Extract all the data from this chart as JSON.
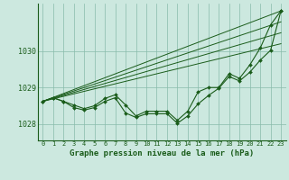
{
  "title": "Graphe pression niveau de la mer (hPa)",
  "bg_color": "#cce8df",
  "plot_bg_color": "#cce8df",
  "grid_color": "#88bbaa",
  "line_color": "#1a5c1a",
  "marker_color": "#1a5c1a",
  "x_ticks": [
    0,
    1,
    2,
    3,
    4,
    5,
    6,
    7,
    8,
    9,
    10,
    11,
    12,
    13,
    14,
    15,
    16,
    17,
    18,
    19,
    20,
    21,
    22,
    23
  ],
  "y_ticks": [
    1028,
    1029,
    1030
  ],
  "ylim": [
    1027.55,
    1031.3
  ],
  "xlim": [
    -0.5,
    23.5
  ],
  "straight_line1": [
    [
      0,
      1028.62
    ],
    [
      23,
      1031.1
    ]
  ],
  "straight_line2": [
    [
      0,
      1028.62
    ],
    [
      23,
      1031.1
    ]
  ],
  "wiggly1": [
    1028.62,
    1028.72,
    1028.62,
    1028.52,
    1028.42,
    1028.5,
    1028.7,
    1028.8,
    1028.52,
    1028.22,
    1028.35,
    1028.35,
    1028.35,
    1028.1,
    1028.35,
    1028.88,
    1029.0,
    1029.0,
    1029.38,
    1029.25,
    1029.62,
    1030.08,
    1030.72,
    1031.1
  ],
  "wiggly2": [
    1028.62,
    1028.72,
    1028.62,
    1028.45,
    1028.38,
    1028.45,
    1028.62,
    1028.72,
    1028.3,
    1028.18,
    1028.28,
    1028.28,
    1028.28,
    1028.02,
    1028.22,
    1028.55,
    1028.78,
    1028.98,
    1029.3,
    1029.18,
    1029.42,
    1029.75,
    1030.02,
    1031.1
  ]
}
